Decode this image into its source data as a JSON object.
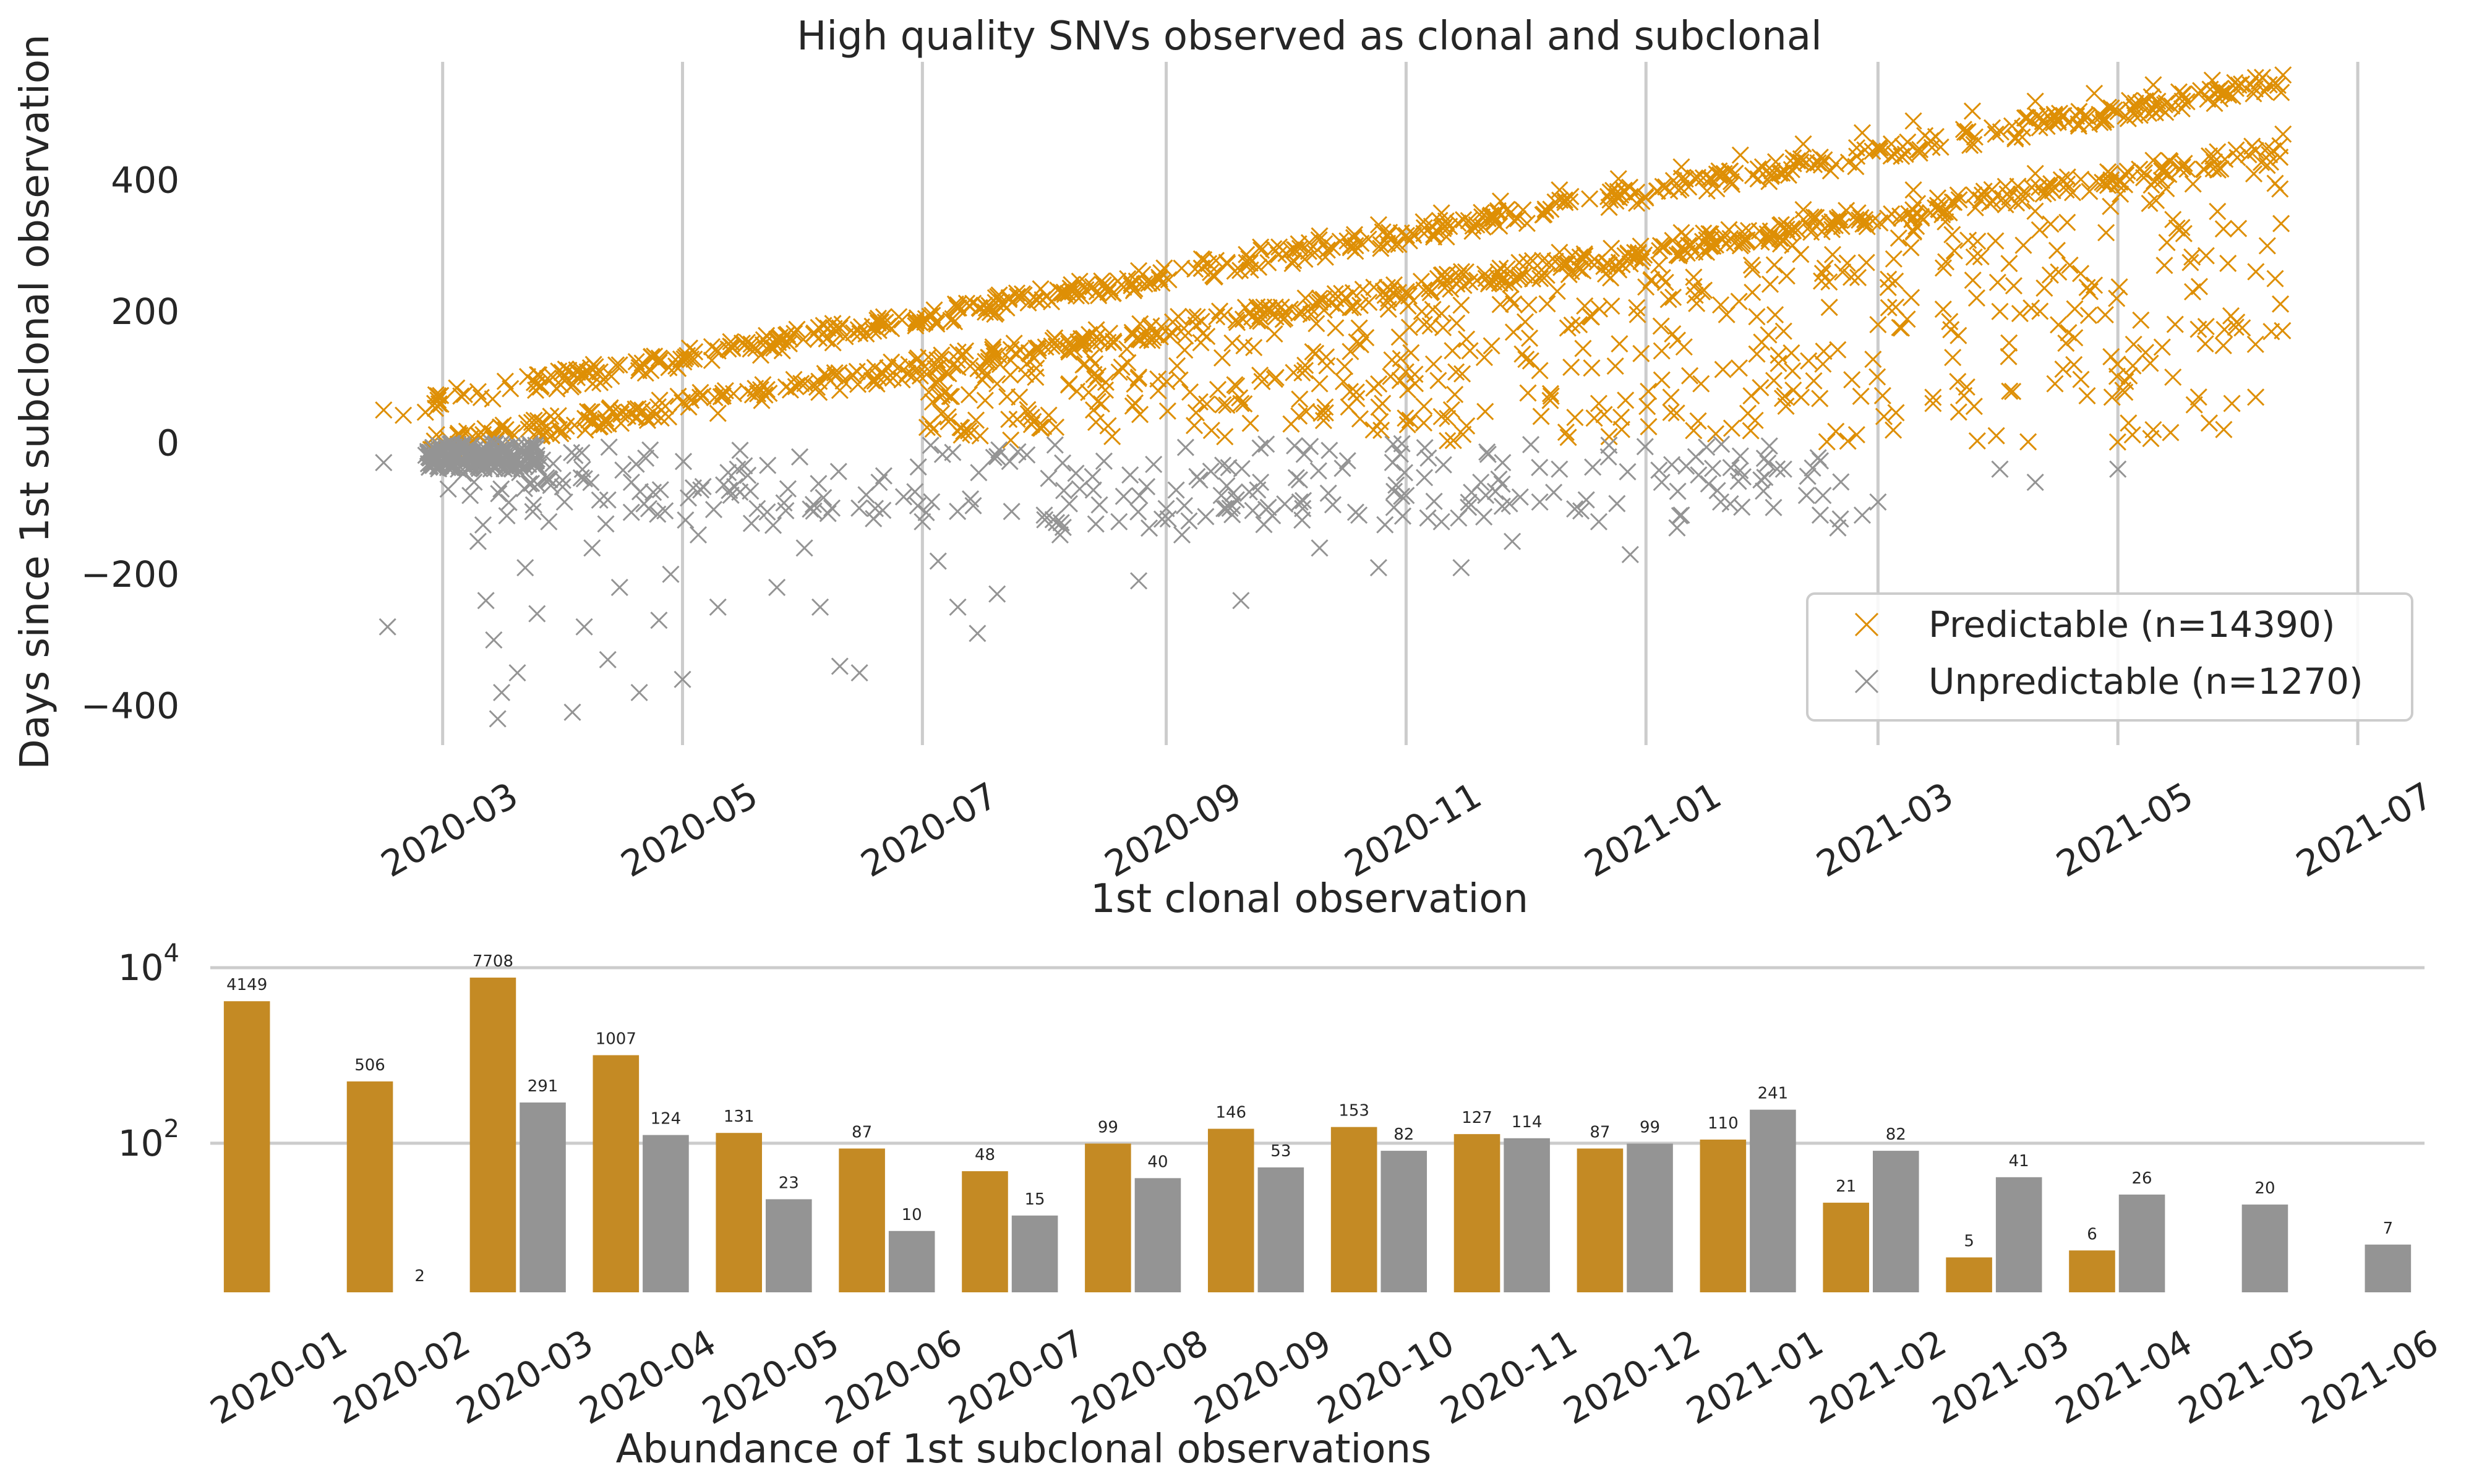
{
  "colors": {
    "predictable": "#DE8F05",
    "unpredictable": "#949494",
    "bar_predictable": "#C48A24",
    "bar_unpredictable": "#949494",
    "grid": "#CCCCCC"
  },
  "chart_data": [
    {
      "type": "scatter",
      "title": "High quality SNVs observed as clonal and subclonal",
      "xlabel": "1st clonal observation",
      "ylabel": "Days since 1st subclonal observation",
      "x_ticks": [
        "2020-03",
        "2020-05",
        "2020-07",
        "2020-09",
        "2020-11",
        "2021-01",
        "2021-03",
        "2021-05",
        "2021-07"
      ],
      "y_ticks": [
        -400,
        -200,
        0,
        200,
        400
      ],
      "xlim": [
        "2020-01-20",
        "2021-07-12"
      ],
      "ylim": [
        -460,
        580
      ],
      "grid": "vertical",
      "legend_position": "lower-right",
      "marker": "x",
      "series": [
        {
          "name": "Predictable (n=14390)",
          "color": "#DE8F05",
          "points": [
            [
              "2020-02-15",
              50
            ],
            [
              "2020-02-20",
              42
            ],
            [
              "2020-02-28",
              60
            ],
            [
              "2020-03-10",
              78
            ],
            [
              "2020-03-25",
              90
            ],
            [
              "2020-04-10",
              108
            ],
            [
              "2020-04-25",
              122
            ],
            [
              "2020-05-10",
              140
            ],
            [
              "2020-05-25",
              158
            ],
            [
              "2020-06-10",
              175
            ],
            [
              "2020-06-25",
              192
            ],
            [
              "2020-07-10",
              210
            ],
            [
              "2020-07-25",
              228
            ],
            [
              "2020-08-10",
              246
            ],
            [
              "2020-08-25",
              262
            ],
            [
              "2020-09-10",
              280
            ],
            [
              "2020-09-25",
              298
            ],
            [
              "2020-10-10",
              315
            ],
            [
              "2020-10-25",
              332
            ],
            [
              "2020-11-10",
              350
            ],
            [
              "2020-11-25",
              368
            ],
            [
              "2020-12-10",
              385
            ],
            [
              "2020-12-25",
              402
            ],
            [
              "2021-01-10",
              420
            ],
            [
              "2021-01-25",
              438
            ],
            [
              "2021-02-10",
              455
            ],
            [
              "2021-02-25",
              472
            ],
            [
              "2021-03-10",
              490
            ],
            [
              "2021-03-25",
              505
            ],
            [
              "2021-04-10",
              520
            ],
            [
              "2021-04-25",
              532
            ],
            [
              "2021-05-10",
              545
            ],
            [
              "2021-05-25",
              552
            ],
            [
              "2021-06-05",
              556
            ],
            [
              "2021-06-12",
              560
            ],
            [
              "2020-03-10",
              12
            ],
            [
              "2020-04-10",
              25
            ],
            [
              "2020-05-10",
              45
            ],
            [
              "2020-06-10",
              80
            ],
            [
              "2020-07-10",
              115
            ],
            [
              "2020-08-10",
              150
            ],
            [
              "2020-09-10",
              185
            ],
            [
              "2020-10-10",
              220
            ],
            [
              "2020-11-10",
              255
            ],
            [
              "2020-12-10",
              290
            ],
            [
              "2021-01-10",
              320
            ],
            [
              "2021-02-10",
              355
            ],
            [
              "2021-03-10",
              385
            ],
            [
              "2021-04-10",
              410
            ],
            [
              "2021-05-10",
              430
            ],
            [
              "2021-06-05",
              445
            ],
            [
              "2021-06-12",
              470
            ],
            [
              "2021-06-10",
              395
            ],
            [
              "2020-11-05",
              200
            ],
            [
              "2020-11-08",
              120
            ],
            [
              "2020-11-10",
              40
            ],
            [
              "2020-12-20",
              60
            ],
            [
              "2021-01-05",
              140
            ],
            [
              "2021-01-15",
              90
            ],
            [
              "2021-01-20",
              210
            ],
            [
              "2021-02-05",
              170
            ],
            [
              "2021-02-15",
              120
            ],
            [
              "2021-03-01",
              180
            ],
            [
              "2021-03-15",
              60
            ],
            [
              "2021-03-20",
              130
            ],
            [
              "2021-04-01",
              200
            ],
            [
              "2021-04-15",
              90
            ],
            [
              "2021-04-20",
              160
            ],
            [
              "2021-04-25",
              240
            ],
            [
              "2021-05-05",
              150
            ],
            [
              "2021-05-10",
              20
            ],
            [
              "2021-05-15",
              100
            ],
            [
              "2021-05-20",
              230
            ],
            [
              "2021-05-30",
              60
            ],
            [
              "2021-06-05",
              150
            ],
            [
              "2021-06-08",
              300
            ],
            [
              "2021-06-10",
              250
            ],
            [
              "2021-05-15",
              340
            ],
            [
              "2021-04-28",
              320
            ],
            [
              "2021-03-05",
              280
            ],
            [
              "2021-02-20",
              260
            ],
            [
              "2021-01-25",
              300
            ],
            [
              "2020-12-05",
              110
            ],
            [
              "2020-12-15",
              180
            ],
            [
              "2020-10-10",
              90
            ],
            [
              "2020-09-20",
              60
            ],
            [
              "2020-08-25",
              100
            ],
            [
              "2020-07-20",
              90
            ]
          ]
        },
        {
          "name": "Unpredictable (n=1270)",
          "color": "#949494",
          "points": [
            [
              "2020-02-15",
              -30
            ],
            [
              "2020-02-16",
              -280
            ],
            [
              "2020-02-28",
              -10
            ],
            [
              "2020-03-05",
              -40
            ],
            [
              "2020-03-08",
              -80
            ],
            [
              "2020-03-10",
              -150
            ],
            [
              "2020-03-12",
              -240
            ],
            [
              "2020-03-14",
              -300
            ],
            [
              "2020-03-15",
              -420
            ],
            [
              "2020-03-16",
              -380
            ],
            [
              "2020-03-20",
              -350
            ],
            [
              "2020-03-22",
              -190
            ],
            [
              "2020-03-25",
              -260
            ],
            [
              "2020-03-28",
              -120
            ],
            [
              "2020-04-01",
              -90
            ],
            [
              "2020-04-03",
              -410
            ],
            [
              "2020-04-06",
              -280
            ],
            [
              "2020-04-08",
              -160
            ],
            [
              "2020-04-12",
              -330
            ],
            [
              "2020-04-15",
              -220
            ],
            [
              "2020-04-18",
              -60
            ],
            [
              "2020-04-20",
              -380
            ],
            [
              "2020-04-25",
              -270
            ],
            [
              "2020-04-28",
              -200
            ],
            [
              "2020-05-01",
              -360
            ],
            [
              "2020-05-05",
              -140
            ],
            [
              "2020-05-10",
              -250
            ],
            [
              "2020-05-15",
              -40
            ],
            [
              "2020-05-20",
              -100
            ],
            [
              "2020-05-25",
              -220
            ],
            [
              "2020-06-01",
              -160
            ],
            [
              "2020-06-05",
              -250
            ],
            [
              "2020-06-10",
              -340
            ],
            [
              "2020-06-15",
              -350
            ],
            [
              "2020-06-20",
              -60
            ],
            [
              "2020-07-01",
              -120
            ],
            [
              "2020-07-05",
              -180
            ],
            [
              "2020-07-10",
              -250
            ],
            [
              "2020-07-15",
              -290
            ],
            [
              "2020-07-20",
              -230
            ],
            [
              "2020-08-01",
              -110
            ],
            [
              "2020-08-05",
              -140
            ],
            [
              "2020-08-10",
              -70
            ],
            [
              "2020-08-20",
              -120
            ],
            [
              "2020-08-25",
              -210
            ],
            [
              "2020-09-01",
              -100
            ],
            [
              "2020-09-05",
              -140
            ],
            [
              "2020-09-15",
              -80
            ],
            [
              "2020-09-20",
              -240
            ],
            [
              "2020-09-25",
              -60
            ],
            [
              "2020-10-05",
              -90
            ],
            [
              "2020-10-10",
              -160
            ],
            [
              "2020-10-20",
              -110
            ],
            [
              "2020-10-25",
              -190
            ],
            [
              "2020-11-01",
              -80
            ],
            [
              "2020-11-10",
              -120
            ],
            [
              "2020-11-15",
              -190
            ],
            [
              "2020-11-20",
              -60
            ],
            [
              "2020-11-28",
              -150
            ],
            [
              "2020-12-05",
              -90
            ],
            [
              "2020-12-10",
              -40
            ],
            [
              "2020-12-20",
              -120
            ],
            [
              "2020-12-28",
              -170
            ],
            [
              "2021-01-05",
              -60
            ],
            [
              "2021-01-10",
              -110
            ],
            [
              "2021-01-20",
              -90
            ],
            [
              "2021-01-25",
              -20
            ],
            [
              "2021-02-05",
              -40
            ],
            [
              "2021-02-15",
              -80
            ],
            [
              "2021-02-25",
              -110
            ],
            [
              "2021-03-01",
              -90
            ],
            [
              "2021-04-01",
              -40
            ],
            [
              "2021-04-10",
              -60
            ],
            [
              "2021-05-01",
              -40
            ]
          ]
        }
      ]
    },
    {
      "type": "bar",
      "xlabel": "Abundance of 1st subclonal observations",
      "ylabel": "",
      "yscale": "log",
      "ylim": [
        2,
        15000
      ],
      "y_ticks": [
        {
          "base": "10",
          "exp": "4",
          "value": 10000
        },
        {
          "base": "10",
          "exp": "2",
          "value": 100
        }
      ],
      "grid": "horizontal",
      "categories": [
        "2020-01",
        "2020-02",
        "2020-03",
        "2020-04",
        "2020-05",
        "2020-06",
        "2020-07",
        "2020-08",
        "2020-09",
        "2020-10",
        "2020-11",
        "2020-12",
        "2021-01",
        "2021-02",
        "2021-03",
        "2021-04",
        "2021-05",
        "2021-06"
      ],
      "series": [
        {
          "color": "#C48A24",
          "values": [
            4149,
            506,
            7708,
            1007,
            131,
            87,
            48,
            99,
            146,
            153,
            127,
            87,
            110,
            21,
            5,
            6,
            null,
            null
          ]
        },
        {
          "color": "#949494",
          "values": [
            null,
            2,
            291,
            124,
            23,
            10,
            15,
            40,
            53,
            82,
            114,
            99,
            241,
            82,
            41,
            26,
            20,
            7
          ]
        }
      ]
    }
  ]
}
